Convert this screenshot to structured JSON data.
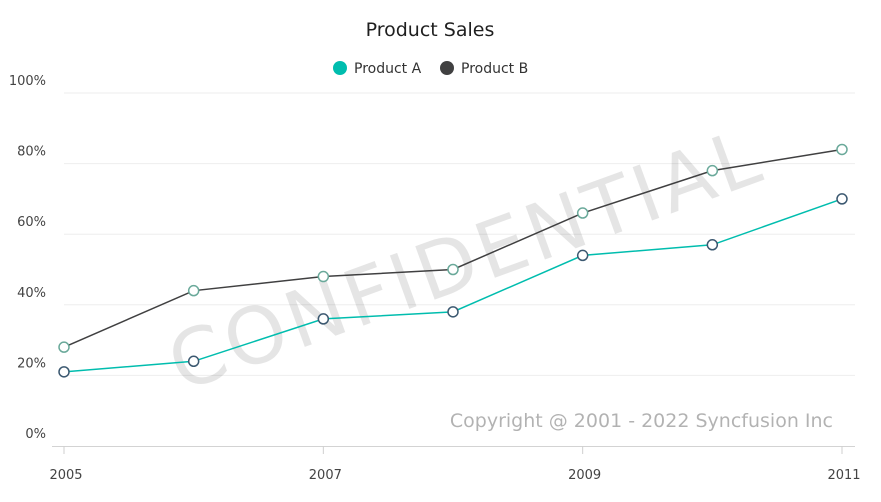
{
  "chart_data": {
    "type": "line",
    "title": "Product Sales",
    "xlabel": "",
    "ylabel": "",
    "x": [
      2005,
      2006,
      2007,
      2008,
      2009,
      2010,
      2011
    ],
    "x_ticks": [
      "2005",
      "2007",
      "2009",
      "2011"
    ],
    "x_tick_values": [
      2005,
      2007,
      2009,
      2011
    ],
    "xlim": [
      2005,
      2011
    ],
    "ylim": [
      0,
      100
    ],
    "y_ticks": [
      "0%",
      "20%",
      "40%",
      "60%",
      "80%",
      "100%"
    ],
    "y_tick_values": [
      0,
      20,
      40,
      60,
      80,
      100
    ],
    "grid": "horizontal",
    "legend_position": "top",
    "series": [
      {
        "name": "Product A",
        "color": "#00bdae",
        "values": [
          21,
          24,
          36,
          38,
          54,
          57,
          70
        ]
      },
      {
        "name": "Product B",
        "color": "#404041",
        "values": [
          28,
          44,
          48,
          50,
          66,
          78,
          84
        ]
      }
    ],
    "watermark": "CONFIDENTIAL",
    "copyright": "Copyright @ 2001 - 2022 Syncfusion Inc"
  }
}
